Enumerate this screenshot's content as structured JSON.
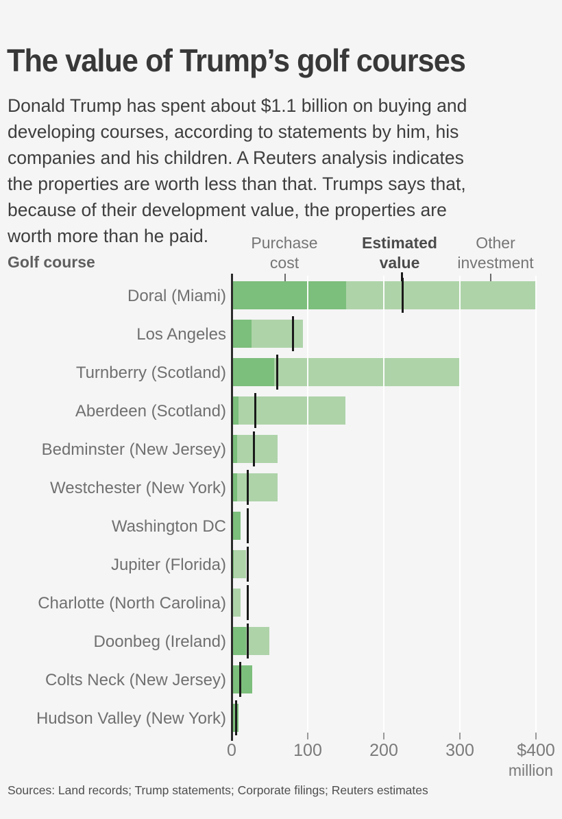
{
  "page": {
    "background": "#f5f5f5"
  },
  "header": {
    "title": "The value of Trump’s golf courses",
    "intro_lines": [
      "Donald Trump has spent about $1.1 billion on buying and",
      "developing courses, according to statements by him, his",
      "companies and his children. A Reuters analysis indicates",
      "the properties are worth less than that. Trumps says that,",
      "because of their development value, the properties are",
      "worth more than he paid."
    ]
  },
  "chart_data": {
    "type": "bar",
    "orientation": "horizontal",
    "title": "The value of Trump’s golf courses",
    "row_header": "Golf course",
    "column_headers": {
      "purchase": "Purchase cost",
      "estimated": "Estimated value",
      "other": "Other investment"
    },
    "unit_label": "million",
    "xlim": [
      0,
      400
    ],
    "x_ticks": [
      {
        "value": 0,
        "label": "0"
      },
      {
        "value": 100,
        "label": "100"
      },
      {
        "value": 200,
        "label": "200"
      },
      {
        "value": 300,
        "label": "300"
      },
      {
        "value": 400,
        "label": "$400"
      }
    ],
    "colors": {
      "purchase_cost": "#7cbe7c",
      "other_investment": "#aed3a9",
      "estimated_value_tick": "#1a1a1a"
    },
    "value_unit": "$ million",
    "rows": [
      {
        "course": "Doral (Miami)",
        "purchase_cost": 150,
        "other_investment": 250,
        "total_investment": 400,
        "estimated_value": 225
      },
      {
        "course": "Los Angeles",
        "purchase_cost": 26,
        "other_investment": 68,
        "total_investment": 94,
        "estimated_value": 81
      },
      {
        "course": "Turnberry (Scotland)",
        "purchase_cost": 56,
        "other_investment": 244,
        "total_investment": 300,
        "estimated_value": 60
      },
      {
        "course": "Aberdeen (Scotland)",
        "purchase_cost": 9,
        "other_investment": 141,
        "total_investment": 150,
        "estimated_value": 31
      },
      {
        "course": "Bedminster (New Jersey)",
        "purchase_cost": 7,
        "other_investment": 53,
        "total_investment": 60,
        "estimated_value": 29
      },
      {
        "course": "Westchester (New York)",
        "purchase_cost": 7,
        "other_investment": 53,
        "total_investment": 60,
        "estimated_value": 21
      },
      {
        "course": "Washington DC",
        "purchase_cost": 12,
        "other_investment": 0,
        "total_investment": 12,
        "estimated_value": 21
      },
      {
        "course": "Jupiter (Florida)",
        "purchase_cost": 3,
        "other_investment": 16,
        "total_investment": 19,
        "estimated_value": 21
      },
      {
        "course": "Charlotte (North Carolina)",
        "purchase_cost": 2,
        "other_investment": 10,
        "total_investment": 12,
        "estimated_value": 21
      },
      {
        "course": "Doonbeg (Ireland)",
        "purchase_cost": 19,
        "other_investment": 31,
        "total_investment": 50,
        "estimated_value": 21
      },
      {
        "course": "Colts Neck (New Jersey)",
        "purchase_cost": 27,
        "other_investment": 0,
        "total_investment": 27,
        "estimated_value": 11
      },
      {
        "course": "Hudson Valley (New York)",
        "purchase_cost": 9,
        "other_investment": 0,
        "total_investment": 9,
        "estimated_value": 6
      }
    ]
  },
  "footer": {
    "sources": "Sources: Land records; Trump statements; Corporate filings; Reuters estimates"
  }
}
